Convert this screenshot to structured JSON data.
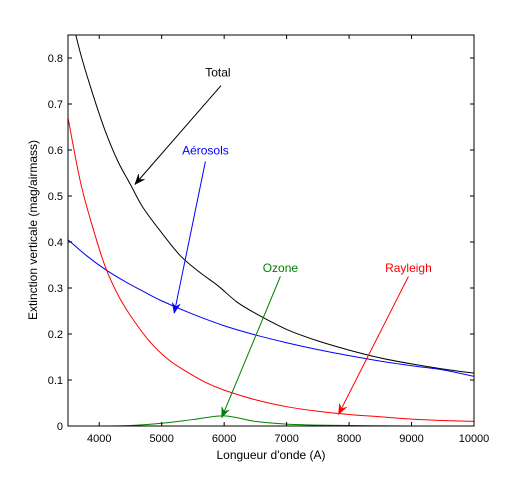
{
  "chart_data": {
    "type": "line",
    "xlabel": "Longueur d'onde (A)",
    "ylabel": "Extinction verticale (mag/airmass)",
    "xlim": [
      3500,
      10000
    ],
    "ylim": [
      0,
      0.85
    ],
    "xticks": [
      4000,
      5000,
      6000,
      7000,
      8000,
      9000,
      10000
    ],
    "yticks": [
      0,
      0.1,
      0.2,
      0.3,
      0.4,
      0.5,
      0.6,
      0.7,
      0.8
    ],
    "x_tick_labels": [
      "4000",
      "5000",
      "6000",
      "7000",
      "8000",
      "9000",
      "10000"
    ],
    "y_tick_labels": [
      "0",
      "0.1",
      "0.2",
      "0.3",
      "0.4",
      "0.5",
      "0.6",
      "0.7",
      "0.8"
    ],
    "grid": false,
    "legend": "none (inline annotations with arrows)",
    "series": [
      {
        "name": "Total",
        "color": "#000000",
        "x": [
          3500,
          3700,
          3900,
          4100,
          4300,
          4500,
          4700,
          5000,
          5300,
          5600,
          5900,
          6200,
          6500,
          7000,
          7500,
          8000,
          8500,
          9000,
          9500,
          10000
        ],
        "y": [
          0.92,
          0.81,
          0.72,
          0.64,
          0.575,
          0.525,
          0.475,
          0.42,
          0.37,
          0.335,
          0.305,
          0.27,
          0.245,
          0.21,
          0.185,
          0.165,
          0.148,
          0.135,
          0.124,
          0.115
        ]
      },
      {
        "name": "Aérosols",
        "color": "#0000ff",
        "x": [
          3500,
          3800,
          4100,
          4400,
          4700,
          5000,
          5500,
          6000,
          6500,
          7000,
          7500,
          8000,
          8500,
          9000,
          9500,
          10000
        ],
        "y": [
          0.405,
          0.37,
          0.34,
          0.315,
          0.293,
          0.272,
          0.243,
          0.218,
          0.198,
          0.181,
          0.166,
          0.153,
          0.141,
          0.131,
          0.122,
          0.108
        ]
      },
      {
        "name": "Ozone",
        "color": "#008000",
        "x": [
          3500,
          4000,
          4500,
          5000,
          5500,
          6000,
          6500,
          7000,
          7500,
          8000,
          9000,
          10000
        ],
        "y": [
          0,
          0,
          0.001,
          0.006,
          0.014,
          0.022,
          0.01,
          0.004,
          0.002,
          0.001,
          0,
          0
        ]
      },
      {
        "name": "Rayleigh",
        "color": "#ff0000",
        "x": [
          3500,
          3700,
          3900,
          4100,
          4300,
          4500,
          4800,
          5100,
          5400,
          5700,
          6000,
          6500,
          7000,
          7500,
          8000,
          8500,
          9000,
          9500,
          10000
        ],
        "y": [
          0.67,
          0.53,
          0.43,
          0.345,
          0.285,
          0.24,
          0.185,
          0.145,
          0.118,
          0.095,
          0.078,
          0.057,
          0.042,
          0.032,
          0.025,
          0.02,
          0.015,
          0.012,
          0.01
        ]
      }
    ],
    "annotations": [
      {
        "text": "Total",
        "color": "#000000",
        "label_at": [
          5900,
          0.76
        ],
        "arrow_from": [
          5950,
          0.74
        ],
        "arrow_to": [
          4570,
          0.525
        ]
      },
      {
        "text": "Aérosols",
        "color": "#0000ff",
        "label_at": [
          5700,
          0.59
        ],
        "arrow_from": [
          5700,
          0.575
        ],
        "arrow_to": [
          5200,
          0.245
        ]
      },
      {
        "text": "Ozone",
        "color": "#008000",
        "label_at": [
          6900,
          0.335
        ],
        "arrow_from": [
          6900,
          0.325
        ],
        "arrow_to": [
          5960,
          0.018
        ]
      },
      {
        "text": "Rayleigh",
        "color": "#ff0000",
        "label_at": [
          8950,
          0.335
        ],
        "arrow_from": [
          8950,
          0.325
        ],
        "arrow_to": [
          7830,
          0.025
        ]
      }
    ]
  }
}
